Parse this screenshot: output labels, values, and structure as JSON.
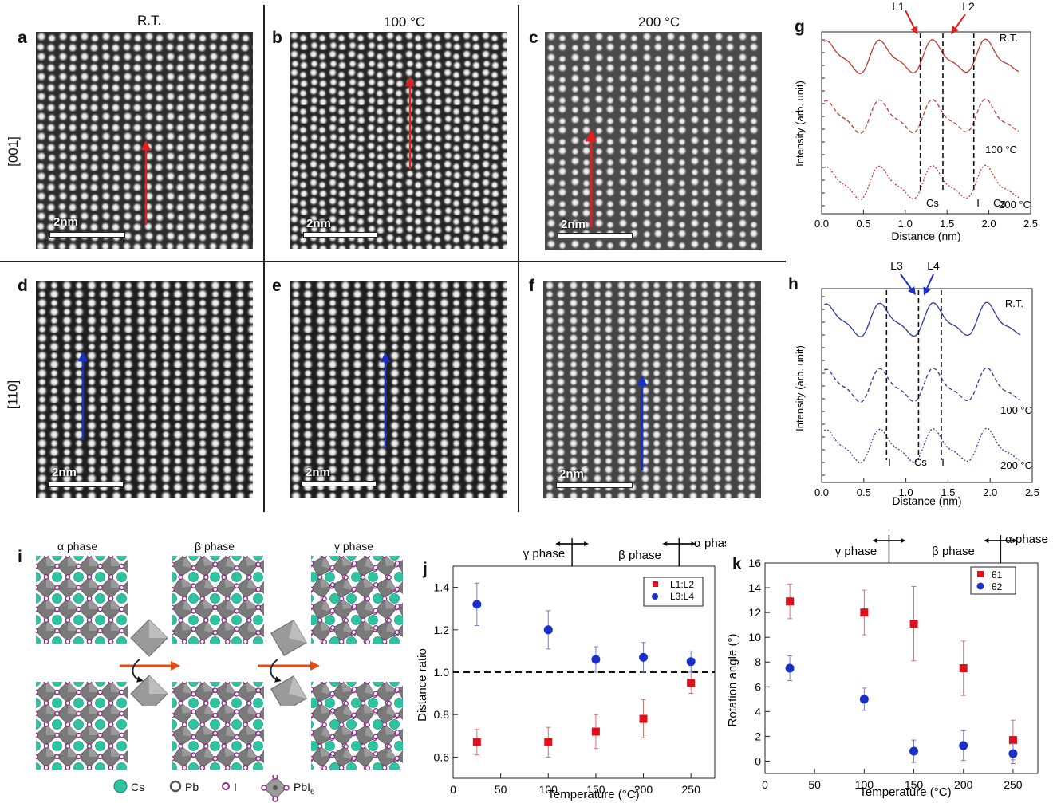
{
  "panel_letters": {
    "a": "a",
    "b": "b",
    "c": "c",
    "d": "d",
    "e": "e",
    "f": "f",
    "g": "g",
    "h": "h",
    "i": "i",
    "j": "j",
    "k": "k"
  },
  "column_headers": [
    "R.T.",
    "100 °C",
    "200 °C"
  ],
  "row_labels": [
    "[001]",
    "[110]"
  ],
  "scale_bar_label": "2nm",
  "colors": {
    "red_arrow": "#e02020",
    "blue_arrow": "#1a2fc8",
    "red_curve": "#c0392b",
    "blue_curve": "#2a3a9a",
    "cs": "#2ec4a0",
    "pb": "#555555",
    "i": "#8a2c8a",
    "octa": "#7a7a7a"
  },
  "structure": {
    "phases": [
      "α phase",
      "β phase",
      "γ phase"
    ],
    "legend": {
      "cs": "Cs",
      "pb": "Pb",
      "i": "I",
      "pbi6": "PbI"
    }
  },
  "chart_data": [
    {
      "id": "g",
      "type": "line",
      "xlabel": "Distance (nm)",
      "ylabel": "Intensity (arb. unit)",
      "xlim": [
        0,
        2.5
      ],
      "xticks": [
        0.0,
        0.5,
        1.0,
        1.5,
        2.0,
        2.5
      ],
      "series": [
        {
          "name": "R.T.",
          "style": "solid"
        },
        {
          "name": "100 °C",
          "style": "dashed"
        },
        {
          "name": "200 °C",
          "style": "dotted"
        }
      ],
      "reference_lines": [
        1.18,
        1.45,
        1.82
      ],
      "annotations": {
        "arrows": [
          "L1",
          "L2"
        ],
        "sites": [
          "Cs",
          "I",
          "Cs"
        ]
      }
    },
    {
      "id": "h",
      "type": "line",
      "xlabel": "Distance (nm)",
      "ylabel": "Intensity (arb. unit)",
      "xlim": [
        0,
        2.5
      ],
      "xticks": [
        0.0,
        0.5,
        1.0,
        1.5,
        2.0,
        2.5
      ],
      "series": [
        {
          "name": "R.T.",
          "style": "solid"
        },
        {
          "name": "100 °C",
          "style": "dashed"
        },
        {
          "name": "200 °C",
          "style": "dotted"
        }
      ],
      "reference_lines": [
        0.77,
        1.15,
        1.42
      ],
      "annotations": {
        "arrows": [
          "L3",
          "L4"
        ],
        "sites": [
          "I",
          "Cs",
          "I"
        ]
      }
    },
    {
      "id": "j",
      "type": "scatter",
      "xlabel": "Temperature (°C)",
      "ylabel": "Distance ratio",
      "xlim": [
        0,
        275
      ],
      "ylim": [
        0.5,
        1.5
      ],
      "xticks": [
        0,
        50,
        100,
        150,
        200,
        250
      ],
      "yticks": [
        0.6,
        0.8,
        1.0,
        1.2,
        1.4
      ],
      "phase_labels": [
        "γ phase",
        "β phase",
        "α phase"
      ],
      "reference_y": 1.0,
      "series": [
        {
          "name": "L1:L2",
          "marker": "square",
          "x": [
            25,
            100,
            150,
            200,
            250
          ],
          "values": [
            0.67,
            0.67,
            0.72,
            0.78,
            0.95
          ],
          "err": [
            0.06,
            0.07,
            0.08,
            0.09,
            0.05
          ]
        },
        {
          "name": "L3:L4",
          "marker": "circle",
          "x": [
            25,
            100,
            150,
            200,
            250
          ],
          "values": [
            1.32,
            1.2,
            1.06,
            1.07,
            1.05
          ],
          "err": [
            0.1,
            0.09,
            0.06,
            0.07,
            0.05
          ]
        }
      ]
    },
    {
      "id": "k",
      "type": "scatter",
      "xlabel": "Temperature (°C)",
      "ylabel": "Rotation angle (°)",
      "xlim": [
        0,
        275
      ],
      "ylim": [
        -1,
        16
      ],
      "xticks": [
        0,
        50,
        100,
        150,
        200,
        250
      ],
      "yticks": [
        0,
        2,
        4,
        6,
        8,
        10,
        12,
        14,
        16
      ],
      "phase_labels": [
        "γ phase",
        "β phase",
        "α phase"
      ],
      "series": [
        {
          "name": "θ1",
          "marker": "square",
          "x": [
            25,
            100,
            150,
            200,
            250
          ],
          "values": [
            12.9,
            12.0,
            11.1,
            7.5,
            1.7
          ],
          "err": [
            1.4,
            1.8,
            3.0,
            2.2,
            1.6
          ]
        },
        {
          "name": "θ2",
          "marker": "circle",
          "x": [
            25,
            100,
            150,
            200,
            250
          ],
          "values": [
            7.5,
            5.0,
            0.8,
            1.25,
            0.6
          ],
          "err": [
            1.0,
            0.9,
            0.9,
            1.2,
            0.8
          ]
        }
      ]
    }
  ]
}
